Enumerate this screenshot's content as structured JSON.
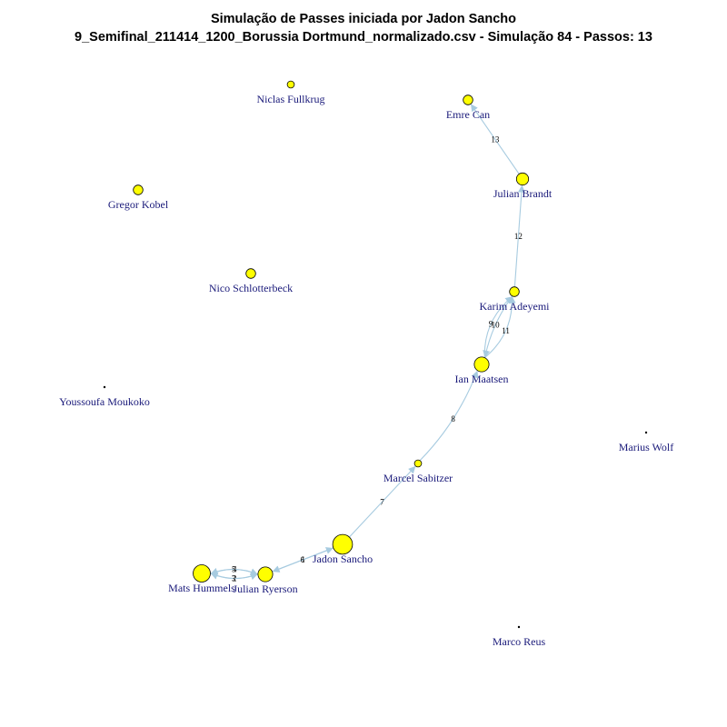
{
  "title": {
    "line1": "Simulação de Passes iniciada por Jadon Sancho",
    "line2": "9_Semifinal_211414_1200_Borussia Dortmund_normalizado.csv - Simulação 84 - Passos: 13"
  },
  "colors": {
    "node_fill": "#ffff00",
    "node_stroke": "#000000",
    "edge": "#a7cbe0",
    "label": "#1a1a7a"
  },
  "nodes": [
    {
      "id": "fullkrug",
      "label": "Niclas Fullkrug",
      "weight": 1
    },
    {
      "id": "emrecan",
      "label": "Emre Can",
      "weight": 2
    },
    {
      "id": "kobel",
      "label": "Gregor Kobel",
      "weight": 2
    },
    {
      "id": "brandt",
      "label": "Julian Brandt",
      "weight": 3
    },
    {
      "id": "schlotterbeck",
      "label": "Nico Schlotterbeck",
      "weight": 2
    },
    {
      "id": "adeyemi",
      "label": "Karim Adeyemi",
      "weight": 2
    },
    {
      "id": "maatsen",
      "label": "Ian Maatsen",
      "weight": 4
    },
    {
      "id": "moukoko",
      "label": "Youssoufa Moukoko",
      "weight": 0
    },
    {
      "id": "wolf",
      "label": "Marius Wolf",
      "weight": 0
    },
    {
      "id": "sabitzer",
      "label": "Marcel Sabitzer",
      "weight": 1
    },
    {
      "id": "sancho",
      "label": "Jadon Sancho",
      "weight": 6
    },
    {
      "id": "hummels",
      "label": "Mats Hummels",
      "weight": 5
    },
    {
      "id": "ryerson",
      "label": "Julian Ryerson",
      "weight": 4
    },
    {
      "id": "reus",
      "label": "Marco Reus",
      "weight": 0
    }
  ],
  "passes": [
    {
      "step": "1",
      "from": "sancho",
      "to": "ryerson"
    },
    {
      "step": "2",
      "from": "ryerson",
      "to": "hummels"
    },
    {
      "step": "3",
      "from": "hummels",
      "to": "ryerson"
    },
    {
      "step": "4",
      "from": "ryerson",
      "to": "hummels"
    },
    {
      "step": "5",
      "from": "hummels",
      "to": "ryerson"
    },
    {
      "step": "6",
      "from": "ryerson",
      "to": "sancho"
    },
    {
      "step": "7",
      "from": "sancho",
      "to": "sabitzer"
    },
    {
      "step": "8",
      "from": "sabitzer",
      "to": "maatsen"
    },
    {
      "step": "9",
      "from": "maatsen",
      "to": "adeyemi"
    },
    {
      "step": "10",
      "from": "adeyemi",
      "to": "maatsen"
    },
    {
      "step": "11",
      "from": "maatsen",
      "to": "adeyemi"
    },
    {
      "step": "12",
      "from": "adeyemi",
      "to": "brandt"
    },
    {
      "step": "13",
      "from": "brandt",
      "to": "emrecan"
    }
  ]
}
